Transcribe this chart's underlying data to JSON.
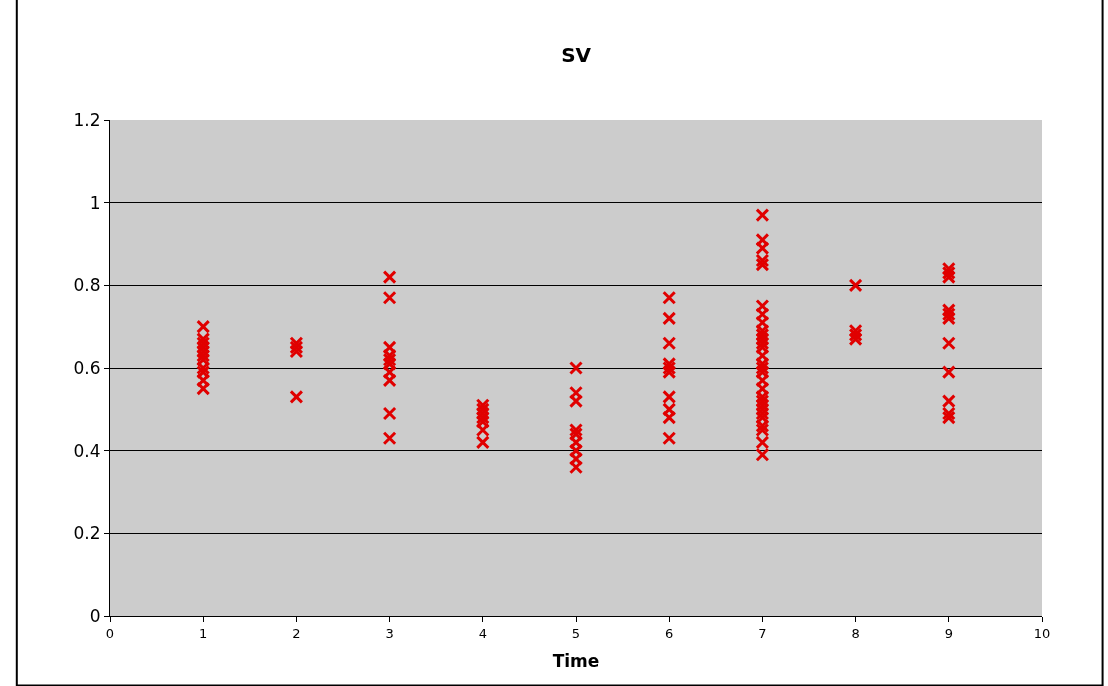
{
  "chart_data": {
    "type": "scatter",
    "title": "SV",
    "xlabel": "Time",
    "x": [
      1,
      1,
      1,
      1,
      1,
      1,
      1,
      1,
      1,
      1,
      1,
      2,
      2,
      2,
      2,
      3,
      3,
      3,
      3,
      3,
      3,
      3,
      3,
      3,
      3,
      4,
      4,
      4,
      4,
      4,
      4,
      4,
      5,
      5,
      5,
      5,
      5,
      5,
      5,
      5,
      5,
      6,
      6,
      6,
      6,
      6,
      6,
      6,
      6,
      6,
      6,
      7,
      7,
      7,
      7,
      7,
      7,
      7,
      7,
      7,
      7,
      7,
      7,
      7,
      7,
      7,
      7,
      7,
      7,
      7,
      7,
      7,
      7,
      7,
      7,
      7,
      7,
      7,
      7,
      7,
      8,
      8,
      8,
      8,
      9,
      9,
      9,
      9,
      9,
      9,
      9,
      9,
      9,
      9,
      9
    ],
    "values": [
      0.7,
      0.67,
      0.66,
      0.65,
      0.64,
      0.63,
      0.62,
      0.6,
      0.59,
      0.57,
      0.55,
      0.66,
      0.65,
      0.64,
      0.53,
      0.82,
      0.77,
      0.65,
      0.63,
      0.62,
      0.61,
      0.59,
      0.57,
      0.49,
      0.43,
      0.51,
      0.5,
      0.49,
      0.48,
      0.47,
      0.45,
      0.42,
      0.6,
      0.54,
      0.52,
      0.45,
      0.44,
      0.42,
      0.4,
      0.38,
      0.36,
      0.77,
      0.72,
      0.66,
      0.61,
      0.6,
      0.59,
      0.53,
      0.5,
      0.48,
      0.43,
      0.97,
      0.91,
      0.89,
      0.86,
      0.85,
      0.75,
      0.73,
      0.71,
      0.69,
      0.68,
      0.67,
      0.66,
      0.65,
      0.63,
      0.61,
      0.6,
      0.59,
      0.57,
      0.55,
      0.53,
      0.52,
      0.51,
      0.5,
      0.49,
      0.48,
      0.46,
      0.45,
      0.42,
      0.39,
      0.8,
      0.69,
      0.68,
      0.67,
      0.84,
      0.83,
      0.82,
      0.74,
      0.73,
      0.72,
      0.66,
      0.59,
      0.52,
      0.49,
      0.48
    ],
    "color": "#e00000",
    "marker": "cross",
    "xlim": [
      0,
      10
    ],
    "xticks": [
      0,
      1,
      2,
      3,
      4,
      5,
      6,
      7,
      8,
      9,
      10
    ],
    "ylim": [
      0,
      1.2
    ],
    "yticks": [
      0,
      0.2,
      0.4,
      0.6,
      0.8,
      1,
      1.2
    ],
    "grid": "y",
    "legend": false
  }
}
